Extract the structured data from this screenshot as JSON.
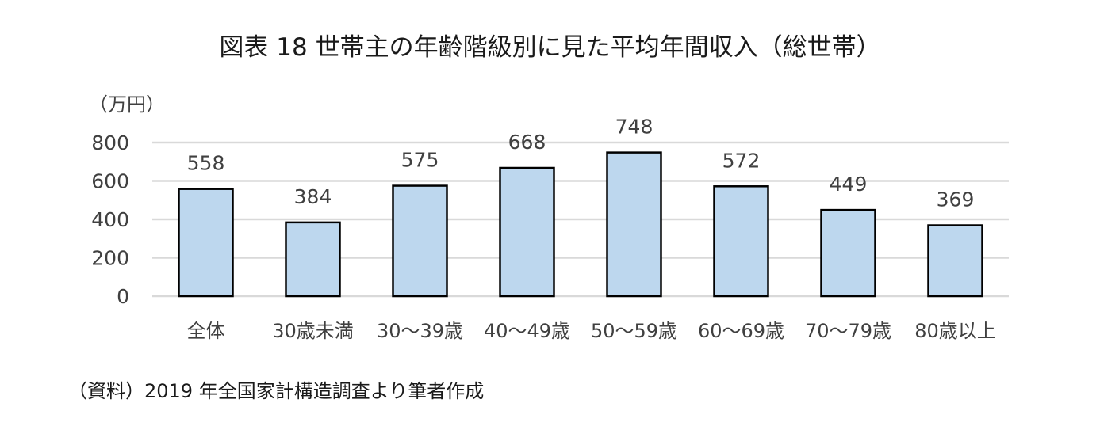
{
  "title": "図表 18 世帯主の年齢階級別に見た平均年間収入（総世帯）",
  "unit_label": "（万円）",
  "source_note": "（資料）2019 年全国家計構造調査より筆者作成",
  "colors": {
    "bar_fill": "#bdd7ee",
    "bar_stroke": "#000000",
    "grid": "#d9d9d9",
    "text": "#404040"
  },
  "chart_data": {
    "type": "bar",
    "categories": [
      "全体",
      "30歳未満",
      "30～39歳",
      "40～49歳",
      "50～59歳",
      "60～69歳",
      "70～79歳",
      "80歳以上"
    ],
    "values": [
      558,
      384,
      575,
      668,
      748,
      572,
      449,
      369
    ],
    "ylim": [
      0,
      800
    ],
    "yticks": [
      0,
      200,
      400,
      600,
      800
    ],
    "ylabel": "（万円）",
    "xlabel": "",
    "data_labels": true,
    "grid": true,
    "legend": "none"
  }
}
